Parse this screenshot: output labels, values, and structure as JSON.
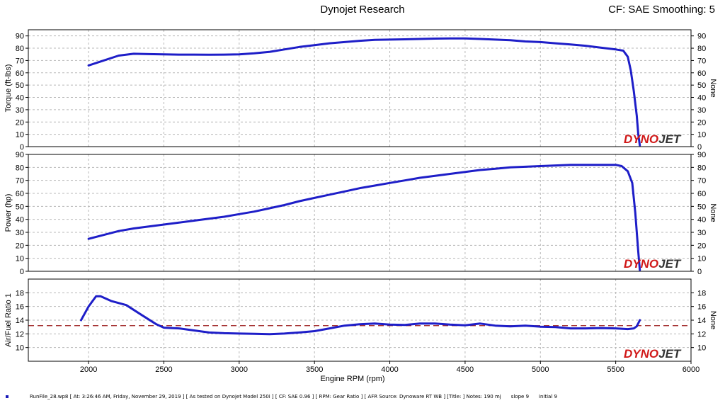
{
  "header": {
    "title": "Dynojet Research",
    "right_text": "CF: SAE Smoothing: 5"
  },
  "brand": {
    "logo_text": "DYNOJET",
    "logo_color_red": "#d01818",
    "logo_color_dark": "#333333"
  },
  "colors": {
    "series": "#1e1ec8",
    "target_line": "#9a1a1a",
    "grid": "#b8b8b8",
    "panel_bg": "#ffffff",
    "frame": "#000000"
  },
  "footer": {
    "run_info": "RunFile_28.wp8 [ At: 3:26:46 AM, Friday, November 29, 2019 ] [ As tested on Dynojet Model 250i ] [ CF: SAE 0.96 ] [ RPM: Gear Ratio ] [ AFR Source: Dynoware RT WB ] [Title: ]  Notes: 190 mj",
    "slope": "slope 9",
    "initial": "initial 9"
  },
  "chart_data": [
    {
      "type": "line",
      "ylabel": "Torque (ft-lbs)",
      "ylabel_right": "None",
      "xlim": [
        1600,
        6000
      ],
      "ylim": [
        0,
        95
      ],
      "yticks": [
        "0",
        "10",
        "20",
        "30",
        "40",
        "50",
        "60",
        "70",
        "80",
        "90"
      ],
      "grid": true,
      "series": [
        {
          "x": [
            2000,
            2100,
            2200,
            2300,
            2400,
            2500,
            2600,
            2700,
            2800,
            2900,
            3000,
            3100,
            3200,
            3300,
            3400,
            3500,
            3600,
            3700,
            3800,
            3900,
            4000,
            4100,
            4200,
            4300,
            4400,
            4500,
            4600,
            4700,
            4800,
            4900,
            5000,
            5100,
            5200,
            5300,
            5400,
            5500,
            5550,
            5580,
            5600,
            5620,
            5640,
            5650,
            5660
          ],
          "y": [
            66,
            70,
            74,
            75.5,
            75.2,
            75,
            74.8,
            74.8,
            74.7,
            74.8,
            75,
            75.8,
            77,
            79,
            81,
            82.5,
            84,
            85,
            86,
            86.8,
            87,
            87.2,
            87.5,
            87.8,
            88,
            87.9,
            87.5,
            87,
            86.5,
            85.5,
            85,
            84,
            83,
            82,
            80.5,
            79,
            78,
            73,
            62,
            45,
            25,
            10,
            1
          ]
        }
      ]
    },
    {
      "type": "line",
      "ylabel": "Power (hp)",
      "ylabel_right": "None",
      "xlim": [
        1600,
        6000
      ],
      "ylim": [
        0,
        90
      ],
      "yticks": [
        "0",
        "10",
        "20",
        "30",
        "40",
        "50",
        "60",
        "70",
        "80",
        "90"
      ],
      "grid": true,
      "series": [
        {
          "x": [
            2000,
            2100,
            2200,
            2300,
            2400,
            2500,
            2600,
            2700,
            2800,
            2900,
            3000,
            3100,
            3200,
            3300,
            3400,
            3500,
            3600,
            3700,
            3800,
            3900,
            4000,
            4100,
            4200,
            4300,
            4400,
            4500,
            4600,
            4700,
            4800,
            4900,
            5000,
            5100,
            5200,
            5300,
            5400,
            5500,
            5540,
            5580,
            5610,
            5630,
            5650,
            5660
          ],
          "y": [
            25,
            28,
            31,
            33,
            34.5,
            36,
            37.5,
            39,
            40.5,
            42,
            44,
            46,
            48.5,
            51,
            54,
            56.5,
            59,
            61.5,
            64,
            66,
            68,
            70,
            72,
            73.5,
            75,
            76.5,
            78,
            79,
            80,
            80.5,
            81,
            81.5,
            82,
            82,
            82,
            82,
            81,
            77,
            68,
            45,
            15,
            1
          ]
        }
      ]
    },
    {
      "type": "line",
      "ylabel": "Air/Fuel Ratio 1",
      "ylabel_right": "None",
      "xlabel": "Engine RPM (rpm)",
      "xlim": [
        1600,
        6000
      ],
      "ylim": [
        8,
        20
      ],
      "yticks": [
        "10",
        "12",
        "14",
        "16",
        "18"
      ],
      "xticks": [
        "2000",
        "2500",
        "3000",
        "3500",
        "4000",
        "4500",
        "5000",
        "5500",
        "6000"
      ],
      "target_line": 13.2,
      "grid": true,
      "series": [
        {
          "x": [
            1950,
            2000,
            2050,
            2080,
            2150,
            2250,
            2350,
            2450,
            2500,
            2600,
            2700,
            2800,
            2900,
            3000,
            3100,
            3200,
            3300,
            3400,
            3500,
            3600,
            3700,
            3800,
            3900,
            4000,
            4100,
            4200,
            4300,
            4400,
            4500,
            4600,
            4700,
            4800,
            4900,
            5000,
            5100,
            5200,
            5300,
            5400,
            5500,
            5580,
            5620,
            5640,
            5660
          ],
          "y": [
            14,
            16,
            17.5,
            17.5,
            16.8,
            16.2,
            14.8,
            13.4,
            12.9,
            12.8,
            12.5,
            12.2,
            12.1,
            12.05,
            12,
            11.95,
            12.05,
            12.2,
            12.4,
            12.8,
            13.2,
            13.4,
            13.5,
            13.35,
            13.3,
            13.5,
            13.5,
            13.35,
            13.25,
            13.5,
            13.2,
            13.1,
            13.2,
            13.05,
            13,
            12.8,
            12.8,
            12.85,
            12.8,
            12.7,
            12.8,
            13.1,
            14
          ]
        }
      ]
    }
  ]
}
